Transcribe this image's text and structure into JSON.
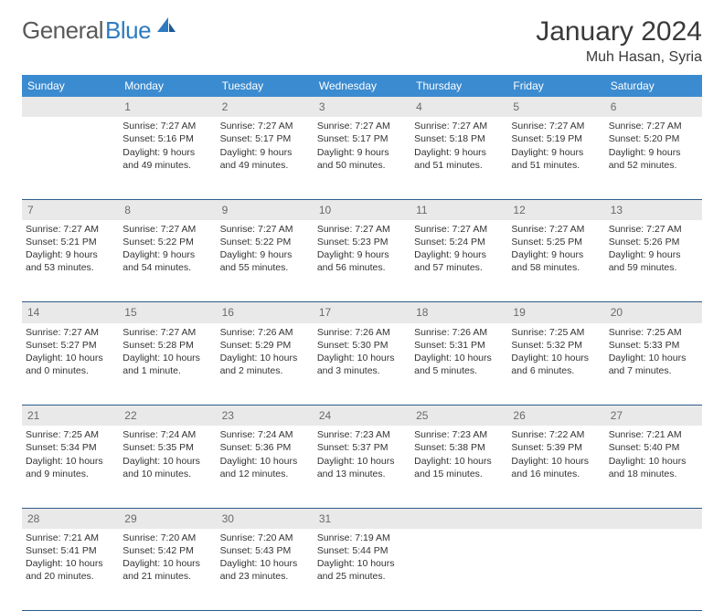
{
  "brand": {
    "part1": "General",
    "part2": "Blue"
  },
  "title": "January 2024",
  "location": "Muh Hasan, Syria",
  "weekdays": [
    "Sunday",
    "Monday",
    "Tuesday",
    "Wednesday",
    "Thursday",
    "Friday",
    "Saturday"
  ],
  "colors": {
    "header_bg": "#3b8bd0",
    "header_text": "#ffffff",
    "daynum_bg": "#e9e9e9",
    "daynum_text": "#6a6a6a",
    "border": "#2d5c8a",
    "logo_gray": "#5a5a5a",
    "logo_blue": "#2d7bc0"
  },
  "weeks": [
    {
      "nums": [
        "",
        "1",
        "2",
        "3",
        "4",
        "5",
        "6"
      ],
      "cells": [
        null,
        {
          "sunrise": "Sunrise: 7:27 AM",
          "sunset": "Sunset: 5:16 PM",
          "d1": "Daylight: 9 hours",
          "d2": "and 49 minutes."
        },
        {
          "sunrise": "Sunrise: 7:27 AM",
          "sunset": "Sunset: 5:17 PM",
          "d1": "Daylight: 9 hours",
          "d2": "and 49 minutes."
        },
        {
          "sunrise": "Sunrise: 7:27 AM",
          "sunset": "Sunset: 5:17 PM",
          "d1": "Daylight: 9 hours",
          "d2": "and 50 minutes."
        },
        {
          "sunrise": "Sunrise: 7:27 AM",
          "sunset": "Sunset: 5:18 PM",
          "d1": "Daylight: 9 hours",
          "d2": "and 51 minutes."
        },
        {
          "sunrise": "Sunrise: 7:27 AM",
          "sunset": "Sunset: 5:19 PM",
          "d1": "Daylight: 9 hours",
          "d2": "and 51 minutes."
        },
        {
          "sunrise": "Sunrise: 7:27 AM",
          "sunset": "Sunset: 5:20 PM",
          "d1": "Daylight: 9 hours",
          "d2": "and 52 minutes."
        }
      ]
    },
    {
      "nums": [
        "7",
        "8",
        "9",
        "10",
        "11",
        "12",
        "13"
      ],
      "cells": [
        {
          "sunrise": "Sunrise: 7:27 AM",
          "sunset": "Sunset: 5:21 PM",
          "d1": "Daylight: 9 hours",
          "d2": "and 53 minutes."
        },
        {
          "sunrise": "Sunrise: 7:27 AM",
          "sunset": "Sunset: 5:22 PM",
          "d1": "Daylight: 9 hours",
          "d2": "and 54 minutes."
        },
        {
          "sunrise": "Sunrise: 7:27 AM",
          "sunset": "Sunset: 5:22 PM",
          "d1": "Daylight: 9 hours",
          "d2": "and 55 minutes."
        },
        {
          "sunrise": "Sunrise: 7:27 AM",
          "sunset": "Sunset: 5:23 PM",
          "d1": "Daylight: 9 hours",
          "d2": "and 56 minutes."
        },
        {
          "sunrise": "Sunrise: 7:27 AM",
          "sunset": "Sunset: 5:24 PM",
          "d1": "Daylight: 9 hours",
          "d2": "and 57 minutes."
        },
        {
          "sunrise": "Sunrise: 7:27 AM",
          "sunset": "Sunset: 5:25 PM",
          "d1": "Daylight: 9 hours",
          "d2": "and 58 minutes."
        },
        {
          "sunrise": "Sunrise: 7:27 AM",
          "sunset": "Sunset: 5:26 PM",
          "d1": "Daylight: 9 hours",
          "d2": "and 59 minutes."
        }
      ]
    },
    {
      "nums": [
        "14",
        "15",
        "16",
        "17",
        "18",
        "19",
        "20"
      ],
      "cells": [
        {
          "sunrise": "Sunrise: 7:27 AM",
          "sunset": "Sunset: 5:27 PM",
          "d1": "Daylight: 10 hours",
          "d2": "and 0 minutes."
        },
        {
          "sunrise": "Sunrise: 7:27 AM",
          "sunset": "Sunset: 5:28 PM",
          "d1": "Daylight: 10 hours",
          "d2": "and 1 minute."
        },
        {
          "sunrise": "Sunrise: 7:26 AM",
          "sunset": "Sunset: 5:29 PM",
          "d1": "Daylight: 10 hours",
          "d2": "and 2 minutes."
        },
        {
          "sunrise": "Sunrise: 7:26 AM",
          "sunset": "Sunset: 5:30 PM",
          "d1": "Daylight: 10 hours",
          "d2": "and 3 minutes."
        },
        {
          "sunrise": "Sunrise: 7:26 AM",
          "sunset": "Sunset: 5:31 PM",
          "d1": "Daylight: 10 hours",
          "d2": "and 5 minutes."
        },
        {
          "sunrise": "Sunrise: 7:25 AM",
          "sunset": "Sunset: 5:32 PM",
          "d1": "Daylight: 10 hours",
          "d2": "and 6 minutes."
        },
        {
          "sunrise": "Sunrise: 7:25 AM",
          "sunset": "Sunset: 5:33 PM",
          "d1": "Daylight: 10 hours",
          "d2": "and 7 minutes."
        }
      ]
    },
    {
      "nums": [
        "21",
        "22",
        "23",
        "24",
        "25",
        "26",
        "27"
      ],
      "cells": [
        {
          "sunrise": "Sunrise: 7:25 AM",
          "sunset": "Sunset: 5:34 PM",
          "d1": "Daylight: 10 hours",
          "d2": "and 9 minutes."
        },
        {
          "sunrise": "Sunrise: 7:24 AM",
          "sunset": "Sunset: 5:35 PM",
          "d1": "Daylight: 10 hours",
          "d2": "and 10 minutes."
        },
        {
          "sunrise": "Sunrise: 7:24 AM",
          "sunset": "Sunset: 5:36 PM",
          "d1": "Daylight: 10 hours",
          "d2": "and 12 minutes."
        },
        {
          "sunrise": "Sunrise: 7:23 AM",
          "sunset": "Sunset: 5:37 PM",
          "d1": "Daylight: 10 hours",
          "d2": "and 13 minutes."
        },
        {
          "sunrise": "Sunrise: 7:23 AM",
          "sunset": "Sunset: 5:38 PM",
          "d1": "Daylight: 10 hours",
          "d2": "and 15 minutes."
        },
        {
          "sunrise": "Sunrise: 7:22 AM",
          "sunset": "Sunset: 5:39 PM",
          "d1": "Daylight: 10 hours",
          "d2": "and 16 minutes."
        },
        {
          "sunrise": "Sunrise: 7:21 AM",
          "sunset": "Sunset: 5:40 PM",
          "d1": "Daylight: 10 hours",
          "d2": "and 18 minutes."
        }
      ]
    },
    {
      "nums": [
        "28",
        "29",
        "30",
        "31",
        "",
        "",
        ""
      ],
      "cells": [
        {
          "sunrise": "Sunrise: 7:21 AM",
          "sunset": "Sunset: 5:41 PM",
          "d1": "Daylight: 10 hours",
          "d2": "and 20 minutes."
        },
        {
          "sunrise": "Sunrise: 7:20 AM",
          "sunset": "Sunset: 5:42 PM",
          "d1": "Daylight: 10 hours",
          "d2": "and 21 minutes."
        },
        {
          "sunrise": "Sunrise: 7:20 AM",
          "sunset": "Sunset: 5:43 PM",
          "d1": "Daylight: 10 hours",
          "d2": "and 23 minutes."
        },
        {
          "sunrise": "Sunrise: 7:19 AM",
          "sunset": "Sunset: 5:44 PM",
          "d1": "Daylight: 10 hours",
          "d2": "and 25 minutes."
        },
        null,
        null,
        null
      ]
    }
  ]
}
